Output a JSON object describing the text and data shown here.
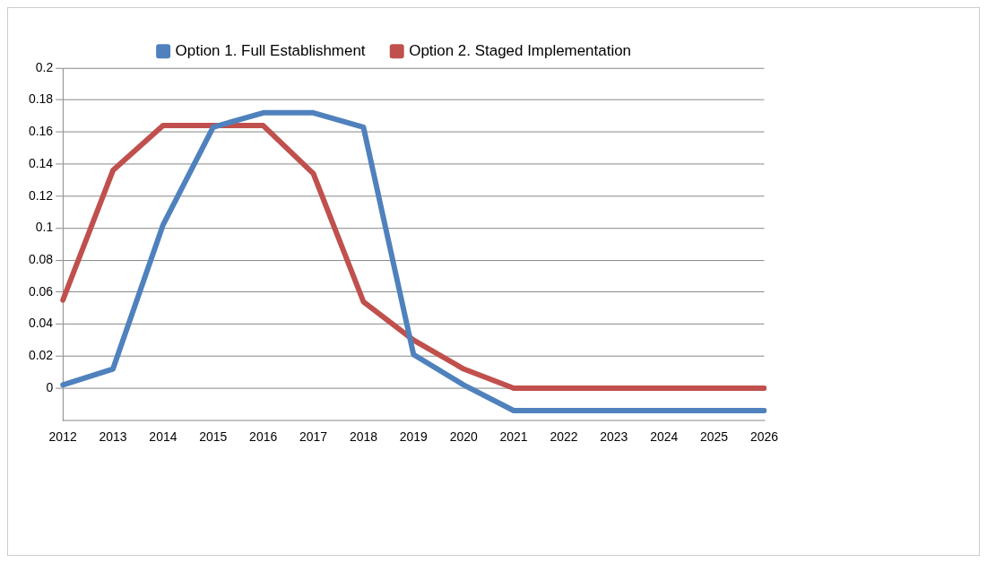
{
  "chart_data": {
    "type": "line",
    "categories": [
      "2012",
      "2013",
      "2014",
      "2015",
      "2016",
      "2017",
      "2018",
      "2019",
      "2020",
      "2021",
      "2022",
      "2023",
      "2024",
      "2025",
      "2026"
    ],
    "series": [
      {
        "name": "Option 1. Full Establishment",
        "color": "#4f81bd",
        "values": [
          0.002,
          0.012,
          0.102,
          0.163,
          0.172,
          0.172,
          0.163,
          0.021,
          0.002,
          -0.014,
          -0.014,
          -0.014,
          -0.014,
          -0.014,
          -0.014
        ]
      },
      {
        "name": "Option 2. Staged Implementation",
        "color": "#c0504d",
        "values": [
          0.055,
          0.136,
          0.164,
          0.164,
          0.164,
          0.134,
          0.054,
          0.03,
          0.012,
          0,
          0,
          0,
          0,
          0,
          0
        ]
      }
    ],
    "ylim": [
      -0.02,
      0.2
    ],
    "yticks": [
      0,
      0.02,
      0.04,
      0.06,
      0.08,
      0.1,
      0.12,
      0.14,
      0.16,
      0.18,
      0.2
    ],
    "grid": "y",
    "legend": "top",
    "marker": "none",
    "line_style": "solid"
  }
}
